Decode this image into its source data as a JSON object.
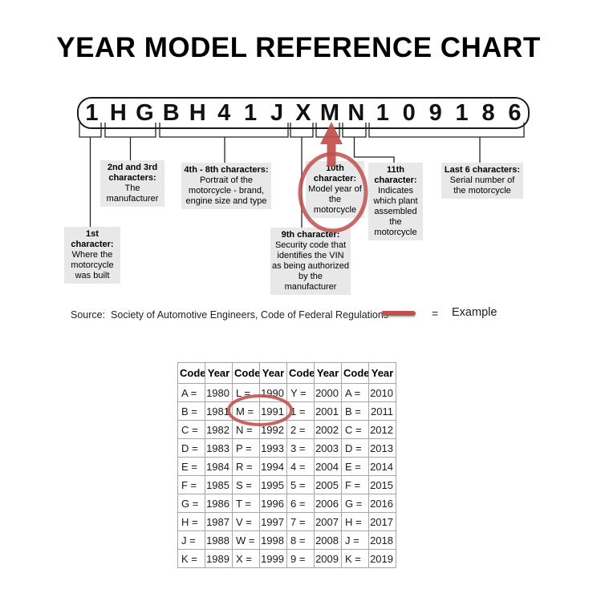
{
  "title": "YEAR MODEL REFERENCE CHART",
  "vin": {
    "characters": [
      "1",
      "H",
      "G",
      "B",
      "H",
      "4",
      "1",
      "J",
      "X",
      "M",
      "N",
      "1",
      "0",
      "9",
      "1",
      "8",
      "6"
    ]
  },
  "callouts": [
    {
      "title": "1st character:",
      "body": "Where the motorcycle was built"
    },
    {
      "title": "2nd and 3rd characters:",
      "body": "The manufacturer"
    },
    {
      "title": "4th - 8th characters:",
      "body": "Portrait of the motorcycle - brand, engine size and type"
    },
    {
      "title": "9th character:",
      "body": "Security code that identifies the VIN as being authorized by the manufacturer"
    },
    {
      "title": "10th character:",
      "body": "Model year of the motorcycle"
    },
    {
      "title": "11th character:",
      "body": "Indicates which plant assembled the motorcycle"
    },
    {
      "title": "Last 6 characters:",
      "body": "Serial number of the motorcycle"
    }
  ],
  "source": {
    "text": "Source:  Society of Automotive Engineers, Code of Federal Regulations"
  },
  "legend": {
    "equals": "=",
    "label": "Example"
  },
  "table": {
    "headers": [
      "Code",
      "Year",
      "Code",
      "Year",
      "Code",
      "Year",
      "Code",
      "Year"
    ],
    "rows": [
      [
        "A =",
        "1980",
        "L =",
        "1990",
        "Y =",
        "2000",
        "A =",
        "2010"
      ],
      [
        "B =",
        "1981",
        "M =",
        "1991",
        "1 =",
        "2001",
        "B =",
        "2011"
      ],
      [
        "C =",
        "1982",
        "N =",
        "1992",
        "2 =",
        "2002",
        "C =",
        "2012"
      ],
      [
        "D =",
        "1983",
        "P =",
        "1993",
        "3 =",
        "2003",
        "D =",
        "2013"
      ],
      [
        "E =",
        "1984",
        "R =",
        "1994",
        "4 =",
        "2004",
        "E =",
        "2014"
      ],
      [
        "F =",
        "1985",
        "S =",
        "1995",
        "5 =",
        "2005",
        "F =",
        "2015"
      ],
      [
        "G =",
        "1986",
        "T =",
        "1996",
        "6 =",
        "2006",
        "G =",
        "2016"
      ],
      [
        "H =",
        "1987",
        "V =",
        "1997",
        "7 =",
        "2007",
        "H =",
        "2017"
      ],
      [
        "J =",
        "1988",
        "W =",
        "1998",
        "8 =",
        "2008",
        "J =",
        "2018"
      ],
      [
        "K =",
        "1989",
        "X =",
        "1999",
        "9 =",
        "2009",
        "K =",
        "2019"
      ]
    ],
    "highlight": {
      "code": "M =",
      "year": "1991"
    }
  },
  "colors": {
    "example_red": "#c0504d",
    "callout_bg": "#e8e8e8",
    "table_border": "#a6a6a6"
  }
}
